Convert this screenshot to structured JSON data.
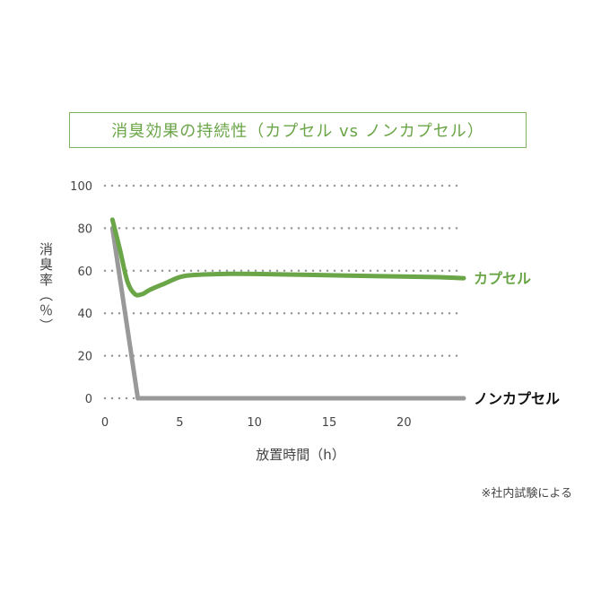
{
  "title": "消臭効果の持続性（カプセル vs ノンカプセル）",
  "ylabel": "消臭率（％）",
  "xlabel": "放置時間（h）",
  "note": "※社内試験による",
  "chart_data": {
    "type": "line",
    "xlim": [
      0,
      24
    ],
    "ylim": [
      0,
      100
    ],
    "yticks": [
      0,
      20,
      40,
      60,
      80,
      100
    ],
    "xticks": [
      0,
      5,
      10,
      15,
      20
    ],
    "grid": "dotted-horizontal",
    "series": [
      {
        "name": "カプセル",
        "color": "#6aa547",
        "label_color": "#6aa547",
        "x": [
          0.5,
          1.0,
          1.5,
          2.0,
          2.5,
          3.0,
          4.0,
          5.0,
          6.0,
          8.0,
          10.0,
          14.0,
          18.0,
          22.0,
          24.0
        ],
        "y": [
          84,
          70,
          55,
          49,
          49,
          51,
          54,
          57,
          58,
          58.5,
          58.5,
          58,
          57.5,
          57,
          56.5
        ]
      },
      {
        "name": "ノンカプセル",
        "color": "#999999",
        "label_color": "#111111",
        "x": [
          0.5,
          2.2,
          24.0
        ],
        "y": [
          80,
          0,
          0
        ]
      }
    ]
  }
}
